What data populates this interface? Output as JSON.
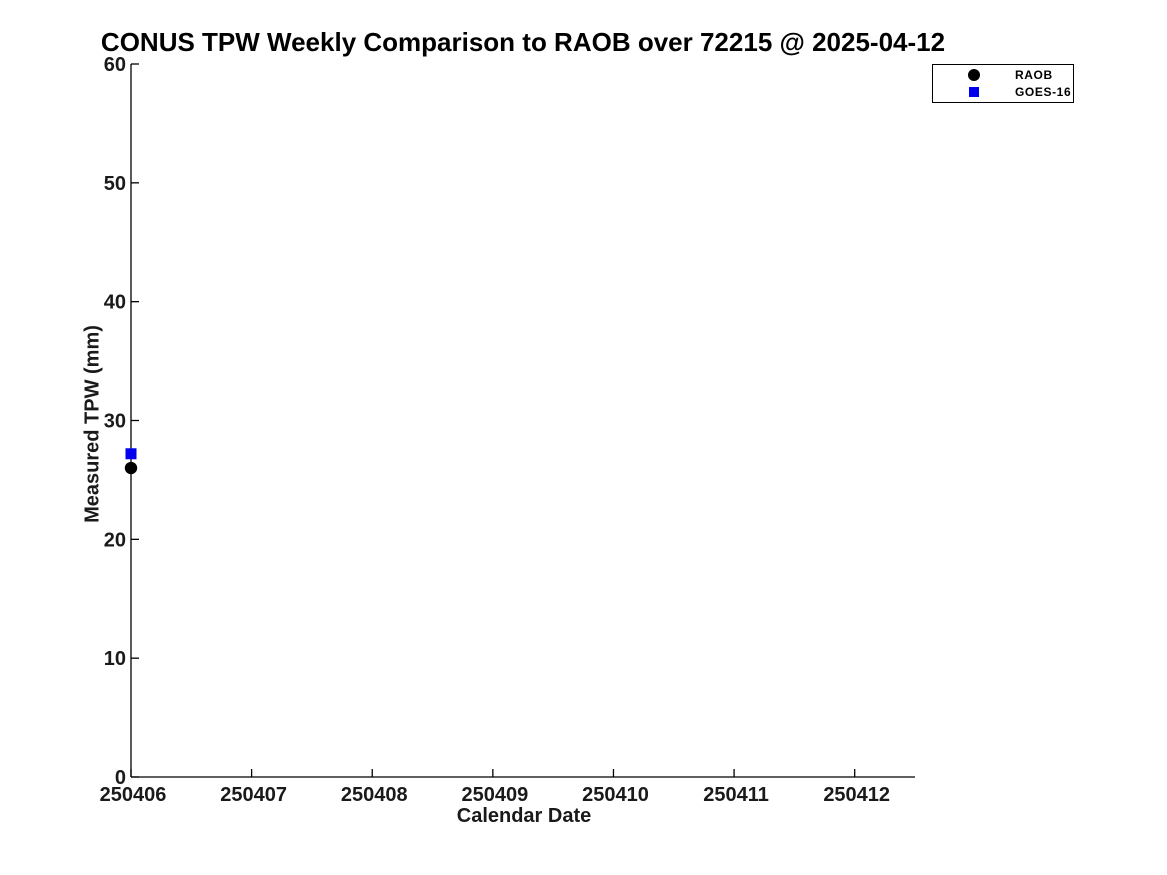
{
  "chart_data": {
    "type": "scatter",
    "title": "CONUS TPW Weekly Comparison to RAOB over 72215 @ 2025-04-12",
    "xlabel": "Calendar Date",
    "ylabel": "Measured TPW (mm)",
    "x_ticks": [
      250406,
      250407,
      250408,
      250409,
      250410,
      250411,
      250412
    ],
    "x_tick_labels": [
      "250406",
      "250407",
      "250408",
      "250409",
      "250410",
      "250411",
      "250412"
    ],
    "y_ticks": [
      0,
      10,
      20,
      30,
      40,
      50,
      60
    ],
    "xlim": [
      250406,
      250412.5
    ],
    "ylim": [
      0,
      60
    ],
    "grid": false,
    "legend_position": "top-right",
    "series": [
      {
        "name": "RAOB",
        "marker": "circle",
        "color": "#000000",
        "points": [
          {
            "x": 250406,
            "y": 26.0
          }
        ]
      },
      {
        "name": "GOES-16",
        "marker": "square",
        "color": "#0000ee",
        "points": [
          {
            "x": 250406,
            "y": 27.2
          }
        ]
      }
    ]
  },
  "colors": {
    "axis": "#000000",
    "background": "#ffffff"
  }
}
